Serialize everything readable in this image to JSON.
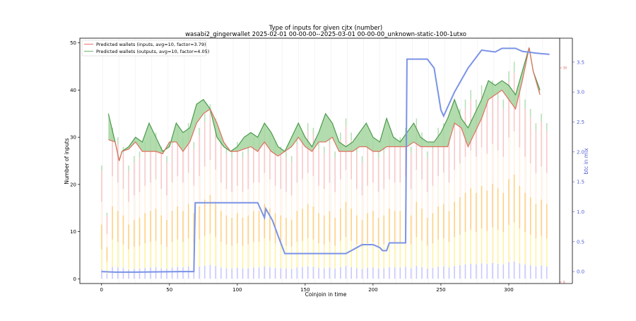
{
  "chart_data": {
    "type": "line",
    "title": "Type of inputs for given cjtx (number)",
    "subtitle": "wasabi2_gingerwallet 2025-02-01 00-00-00--2025-03-01 00-00-00_unknown-static-100-1utxo",
    "xlabel": "Coinjoin in time",
    "ylabel": "Number of inputs",
    "y2label": "btc in mix",
    "xlim": [
      -16,
      337.5
    ],
    "ylim": [
      -1,
      51
    ],
    "y2lim": [
      -0.2,
      3.9
    ],
    "xticks": [
      "0",
      "50",
      "100",
      "150",
      "200",
      "250",
      "300"
    ],
    "yticks": [
      "0",
      "10",
      "20",
      "30",
      "40",
      "50"
    ],
    "y2ticks": [
      "0.0",
      "0.5",
      "1.0",
      "1.5",
      "2.0",
      "2.5",
      "3.0",
      "3.5"
    ],
    "y3ticks": [
      "0",
      "50"
    ],
    "legend_position": "top-left",
    "colors": {
      "inputs": "#e07060",
      "outputs": "#4c9a4c",
      "fill": "#a5d6a0",
      "btc": "#7b93e6",
      "axis2": "#5060d0",
      "axis3": "#e05050"
    },
    "series": [
      {
        "name": "Predicted wallets (inputs, avg=10, factor=3.79)",
        "x": [
          5,
          10,
          13,
          15,
          20,
          25,
          30,
          35,
          40,
          45,
          50,
          55,
          60,
          65,
          70,
          75,
          80,
          85,
          90,
          95,
          100,
          105,
          110,
          115,
          120,
          125,
          130,
          135,
          140,
          145,
          150,
          155,
          160,
          165,
          170,
          175,
          180,
          185,
          190,
          195,
          200,
          205,
          210,
          215,
          220,
          225,
          230,
          235,
          240,
          245,
          250,
          255,
          260,
          265,
          270,
          275,
          280,
          285,
          290,
          295,
          300,
          305,
          310,
          315,
          318,
          323
        ],
        "values": [
          29.5,
          29,
          25,
          27,
          27.5,
          29,
          27,
          27,
          27,
          26.5,
          29,
          29,
          27,
          29,
          33,
          35,
          36,
          33,
          29,
          27,
          27,
          27.5,
          28,
          27,
          29,
          27,
          26,
          27,
          28,
          30,
          28,
          27,
          29,
          29,
          30,
          27,
          27,
          27,
          28,
          28,
          27,
          27,
          28,
          28,
          28,
          28,
          29,
          28,
          28,
          28,
          28,
          28,
          33,
          32,
          28,
          31,
          34,
          38,
          39,
          40,
          38,
          36,
          42,
          49,
          44,
          39
        ]
      },
      {
        "name": "Predicted wallets (outputs, avg=10, factor=4.05)",
        "x": [
          5,
          10,
          13,
          15,
          20,
          25,
          30,
          35,
          40,
          45,
          50,
          55,
          60,
          65,
          70,
          75,
          80,
          85,
          90,
          95,
          100,
          105,
          110,
          115,
          120,
          125,
          130,
          135,
          140,
          145,
          150,
          155,
          160,
          165,
          170,
          175,
          180,
          185,
          190,
          195,
          200,
          205,
          210,
          215,
          220,
          225,
          230,
          235,
          240,
          245,
          250,
          255,
          260,
          265,
          270,
          275,
          280,
          285,
          290,
          295,
          300,
          305,
          310,
          315,
          318,
          323
        ],
        "values": [
          35,
          29,
          25,
          27,
          28,
          30,
          29,
          33,
          30,
          27,
          28,
          33,
          31,
          32,
          37,
          38,
          36,
          30,
          28,
          27,
          28,
          30,
          31,
          30,
          33,
          31,
          28,
          27,
          30,
          33,
          30,
          28,
          31,
          35,
          33,
          29,
          28,
          29,
          31,
          33,
          30,
          29,
          34,
          30,
          29,
          31,
          33,
          30,
          29,
          29,
          31,
          34,
          38,
          34,
          32,
          35,
          38,
          42,
          41,
          42,
          41,
          39,
          44,
          49,
          44,
          40
        ]
      },
      {
        "name": "btc in mix",
        "x": [
          0,
          10,
          12,
          25,
          60,
          68,
          69,
          115,
          120,
          121,
          126,
          130,
          135,
          140,
          180,
          192,
          200,
          205,
          207,
          210,
          212,
          224,
          225,
          240,
          245,
          250,
          252,
          260,
          270,
          280,
          290,
          295,
          305,
          310,
          320,
          330
        ],
        "values": [
          0.0,
          -0.01,
          -0.01,
          -0.01,
          0.0,
          0.0,
          1.15,
          1.15,
          0.9,
          1.05,
          0.85,
          0.6,
          0.3,
          0.3,
          0.3,
          0.45,
          0.45,
          0.4,
          0.35,
          0.35,
          0.48,
          0.48,
          3.55,
          3.55,
          3.4,
          2.7,
          2.6,
          3.0,
          3.4,
          3.7,
          3.67,
          3.73,
          3.73,
          3.68,
          3.65,
          3.63
        ]
      }
    ],
    "bars": {
      "x_step": 4,
      "start": 0,
      "totals": [
        24,
        14,
        32,
        30,
        28,
        24,
        26,
        27,
        29,
        30,
        31,
        28,
        26,
        30,
        32,
        30,
        33,
        29,
        32,
        35,
        37,
        34,
        30,
        28,
        27,
        29,
        27,
        28,
        30,
        30,
        33,
        31,
        29,
        28,
        27,
        26,
        30,
        31,
        33,
        32,
        29,
        28,
        30,
        27,
        31,
        34,
        31,
        28,
        26,
        29,
        30,
        27,
        28,
        31,
        30,
        30,
        32,
        28,
        34,
        31,
        27,
        29,
        32,
        33,
        30,
        34,
        36,
        38,
        40,
        38,
        41,
        39,
        42,
        40,
        38,
        44,
        46,
        41,
        38,
        36,
        33,
        35,
        33
      ]
    }
  }
}
